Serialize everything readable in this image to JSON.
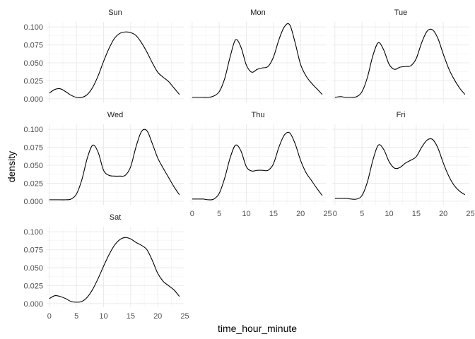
{
  "chart_data": {
    "type": "line",
    "subtype": "faceted density",
    "xlabel": "time_hour_minute",
    "ylabel": "density",
    "xlim": [
      -0.5,
      24.8
    ],
    "ylim": [
      -0.005,
      0.107
    ],
    "x_ticks": [
      0,
      5,
      10,
      15,
      20,
      25
    ],
    "x_tick_labels": [
      "0",
      "5",
      "10",
      "15",
      "20",
      "25"
    ],
    "y_ticks": [
      0.0,
      0.025,
      0.05,
      0.075,
      0.1
    ],
    "y_tick_labels": [
      "0.000",
      "0.025",
      "0.050",
      "0.075",
      "0.100"
    ],
    "grid": true,
    "facet_layout": {
      "rows": 3,
      "cols": 3
    },
    "facets": [
      {
        "label": "Sun",
        "x": [
          0,
          1,
          2,
          3,
          4,
          5,
          6,
          7,
          8,
          9,
          10,
          11,
          12,
          13,
          14,
          15,
          16,
          17,
          18,
          19,
          20,
          21,
          22,
          23,
          24
        ],
        "y": [
          0.008,
          0.013,
          0.014,
          0.01,
          0.005,
          0.002,
          0.002,
          0.006,
          0.016,
          0.032,
          0.052,
          0.07,
          0.084,
          0.091,
          0.093,
          0.092,
          0.088,
          0.078,
          0.065,
          0.05,
          0.037,
          0.03,
          0.024,
          0.015,
          0.006
        ]
      },
      {
        "label": "Mon",
        "x": [
          0,
          1,
          2,
          3,
          4,
          5,
          6,
          7,
          8,
          9,
          10,
          11,
          12,
          13,
          14,
          15,
          16,
          17,
          18,
          19,
          20,
          21,
          22,
          23,
          24
        ],
        "y": [
          0.002,
          0.002,
          0.002,
          0.002,
          0.004,
          0.01,
          0.028,
          0.058,
          0.082,
          0.072,
          0.047,
          0.037,
          0.041,
          0.043,
          0.045,
          0.058,
          0.082,
          0.1,
          0.103,
          0.078,
          0.048,
          0.032,
          0.022,
          0.014,
          0.006
        ]
      },
      {
        "label": "Tue",
        "x": [
          0,
          1,
          2,
          3,
          4,
          5,
          6,
          7,
          8,
          9,
          10,
          11,
          12,
          13,
          14,
          15,
          16,
          17,
          18,
          19,
          20,
          21,
          22,
          23,
          24
        ],
        "y": [
          0.002,
          0.003,
          0.002,
          0.002,
          0.003,
          0.01,
          0.03,
          0.06,
          0.078,
          0.068,
          0.048,
          0.041,
          0.044,
          0.045,
          0.046,
          0.056,
          0.078,
          0.094,
          0.096,
          0.084,
          0.062,
          0.042,
          0.027,
          0.015,
          0.006
        ]
      },
      {
        "label": "Wed",
        "x": [
          0,
          1,
          2,
          3,
          4,
          5,
          6,
          7,
          8,
          9,
          10,
          11,
          12,
          13,
          14,
          15,
          16,
          17,
          18,
          19,
          20,
          21,
          22,
          23,
          24
        ],
        "y": [
          0.002,
          0.002,
          0.002,
          0.002,
          0.003,
          0.01,
          0.03,
          0.06,
          0.078,
          0.068,
          0.043,
          0.036,
          0.035,
          0.035,
          0.036,
          0.048,
          0.076,
          0.097,
          0.098,
          0.08,
          0.06,
          0.046,
          0.033,
          0.02,
          0.009
        ]
      },
      {
        "label": "Thu",
        "x": [
          0,
          1,
          2,
          3,
          4,
          5,
          6,
          7,
          8,
          9,
          10,
          11,
          12,
          13,
          14,
          15,
          16,
          17,
          18,
          19,
          20,
          21,
          22,
          23,
          24
        ],
        "y": [
          0.003,
          0.003,
          0.003,
          0.002,
          0.003,
          0.011,
          0.032,
          0.06,
          0.078,
          0.07,
          0.048,
          0.042,
          0.043,
          0.043,
          0.043,
          0.052,
          0.075,
          0.092,
          0.095,
          0.08,
          0.057,
          0.04,
          0.029,
          0.018,
          0.008
        ]
      },
      {
        "label": "Fri",
        "x": [
          0,
          1,
          2,
          3,
          4,
          5,
          6,
          7,
          8,
          9,
          10,
          11,
          12,
          13,
          14,
          15,
          16,
          17,
          18,
          19,
          20,
          21,
          22,
          23,
          24
        ],
        "y": [
          0.004,
          0.004,
          0.004,
          0.003,
          0.003,
          0.008,
          0.027,
          0.057,
          0.078,
          0.072,
          0.055,
          0.046,
          0.047,
          0.053,
          0.057,
          0.062,
          0.075,
          0.085,
          0.086,
          0.074,
          0.053,
          0.035,
          0.022,
          0.014,
          0.009
        ]
      },
      {
        "label": "Sat",
        "x": [
          0,
          1,
          2,
          3,
          4,
          5,
          6,
          7,
          8,
          9,
          10,
          11,
          12,
          13,
          14,
          15,
          16,
          17,
          18,
          19,
          20,
          21,
          22,
          23,
          24
        ],
        "y": [
          0.007,
          0.011,
          0.01,
          0.007,
          0.003,
          0.002,
          0.003,
          0.009,
          0.02,
          0.035,
          0.052,
          0.068,
          0.081,
          0.089,
          0.092,
          0.09,
          0.085,
          0.081,
          0.075,
          0.06,
          0.042,
          0.031,
          0.025,
          0.019,
          0.01
        ]
      }
    ]
  }
}
